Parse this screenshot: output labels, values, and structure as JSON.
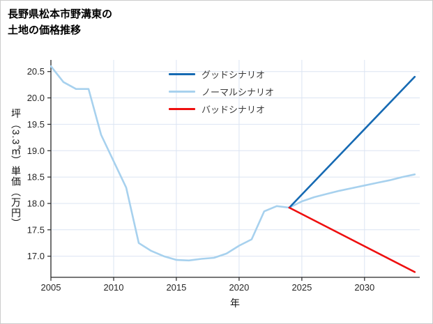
{
  "header": {
    "title_line1": "長野県松本市野溝東の",
    "title_line2": "土地の価格推移"
  },
  "chart_data": {
    "type": "line",
    "title": "長野県松本市野溝東の土地の価格推移",
    "xlabel": "年",
    "ylabel": "坪（3.3㎡）単価（万円）",
    "xlim": [
      2005,
      2034.4
    ],
    "ylim": [
      16.6,
      20.72
    ],
    "xticks": [
      2005,
      2010,
      2015,
      2020,
      2025,
      2030
    ],
    "yticks": [
      17.0,
      17.5,
      18.0,
      18.5,
      19.0,
      19.5,
      20.0,
      20.5
    ],
    "grid": true,
    "legend_position": "upper center",
    "grid_color": "#dbe4f2",
    "axis_color": "#262626",
    "tick_text_color": "#262626",
    "draw_order": [
      1,
      0,
      2
    ],
    "series": [
      {
        "key": "good",
        "name": "グッドシナリオ",
        "color": "#166ab3",
        "x": [
          2024,
          2034
        ],
        "y": [
          17.92,
          20.4
        ]
      },
      {
        "key": "normal",
        "name": "ノーマルシナリオ",
        "color": "#a7d1ee",
        "x": [
          2005,
          2006,
          2007,
          2008,
          2009,
          2010,
          2011,
          2012,
          2013,
          2014,
          2015,
          2016,
          2017,
          2018,
          2019,
          2020,
          2021,
          2022,
          2023,
          2024,
          2025,
          2026,
          2027,
          2028,
          2029,
          2030,
          2031,
          2032,
          2033,
          2034
        ],
        "y": [
          20.6,
          20.3,
          20.17,
          20.17,
          19.3,
          18.8,
          18.3,
          17.25,
          17.1,
          17.0,
          16.93,
          16.92,
          16.95,
          16.97,
          17.05,
          17.2,
          17.32,
          17.85,
          17.95,
          17.92,
          18.04,
          18.12,
          18.18,
          18.24,
          18.29,
          18.34,
          18.39,
          18.44,
          18.5,
          18.55
        ]
      },
      {
        "key": "bad",
        "name": "バッドシナリオ",
        "color": "#ee0f0f",
        "x": [
          2024,
          2034
        ],
        "y": [
          17.92,
          16.7
        ]
      }
    ]
  }
}
